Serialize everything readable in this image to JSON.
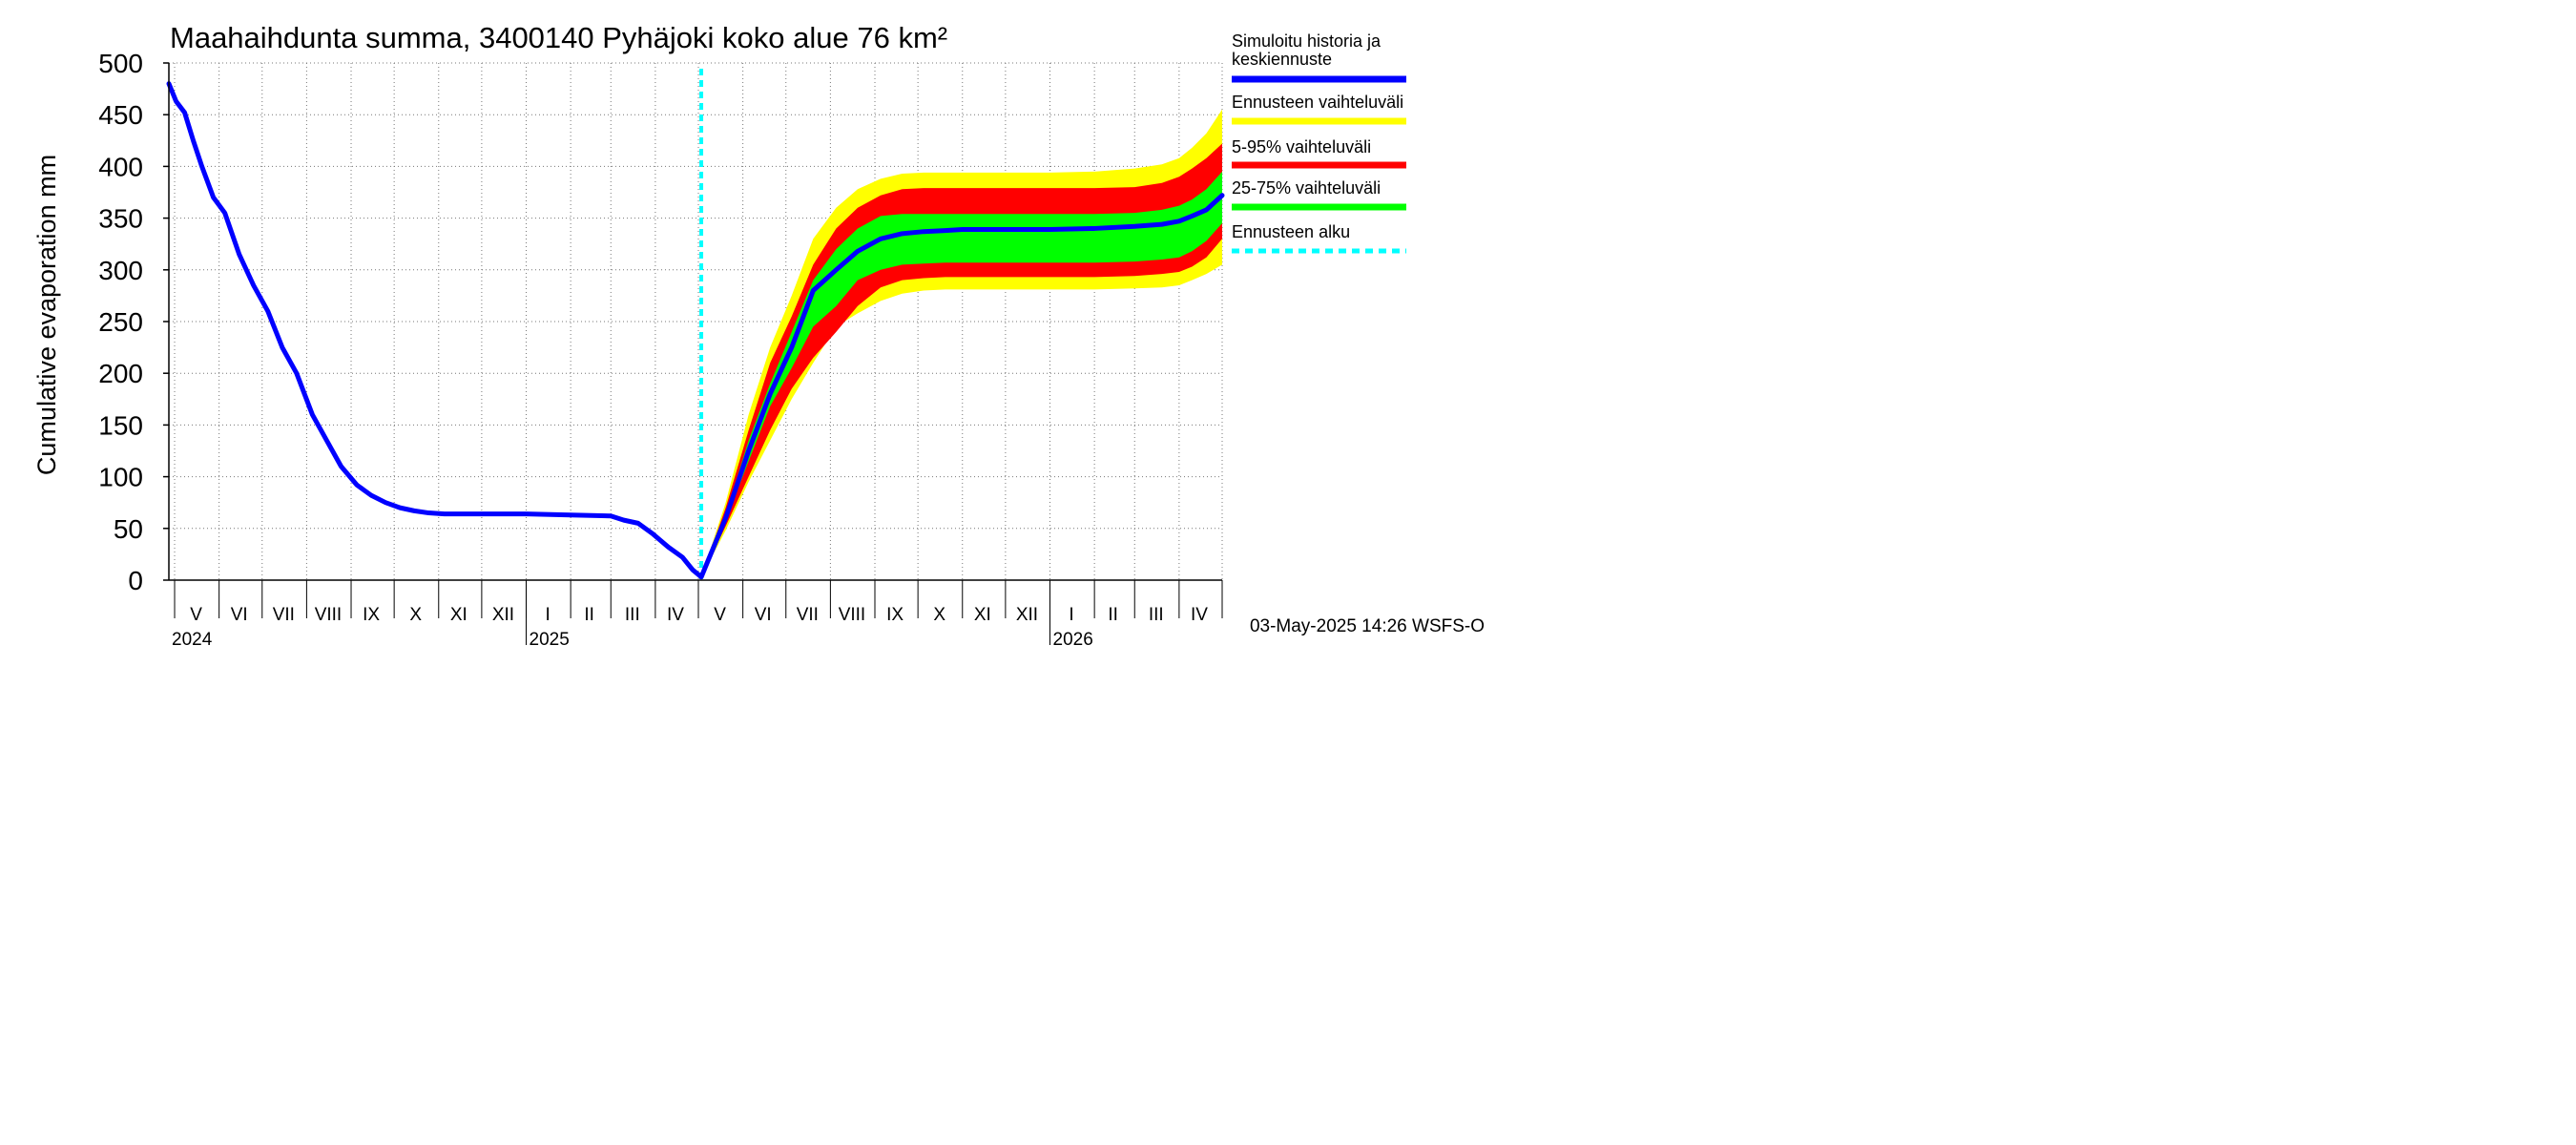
{
  "chart_data": {
    "type": "area",
    "title": "Maahaihdunta summa, 3400140 Pyhäjoki koko alue 76 km²",
    "ylabel": "Cumulative evaporation   mm",
    "ylim": [
      0,
      500
    ],
    "yticks": [
      0,
      50,
      100,
      150,
      200,
      250,
      300,
      350,
      400,
      450,
      500
    ],
    "x_range": [
      "2024-04-27",
      "2026-05-01"
    ],
    "month_labels": [
      {
        "label": "V",
        "date": "2024-05-16"
      },
      {
        "label": "VI",
        "date": "2024-06-15"
      },
      {
        "label": "VII",
        "date": "2024-07-16"
      },
      {
        "label": "VIII",
        "date": "2024-08-16"
      },
      {
        "label": "IX",
        "date": "2024-09-15"
      },
      {
        "label": "X",
        "date": "2024-10-16"
      },
      {
        "label": "XI",
        "date": "2024-11-15"
      },
      {
        "label": "XII",
        "date": "2024-12-16"
      },
      {
        "label": "I",
        "date": "2025-01-16"
      },
      {
        "label": "II",
        "date": "2025-02-14"
      },
      {
        "label": "III",
        "date": "2025-03-16"
      },
      {
        "label": "IV",
        "date": "2025-04-15"
      },
      {
        "label": "V",
        "date": "2025-05-16"
      },
      {
        "label": "VI",
        "date": "2025-06-15"
      },
      {
        "label": "VII",
        "date": "2025-07-16"
      },
      {
        "label": "VIII",
        "date": "2025-08-16"
      },
      {
        "label": "IX",
        "date": "2025-09-15"
      },
      {
        "label": "X",
        "date": "2025-10-16"
      },
      {
        "label": "XI",
        "date": "2025-11-15"
      },
      {
        "label": "XII",
        "date": "2025-12-16"
      },
      {
        "label": "I",
        "date": "2026-01-16"
      },
      {
        "label": "II",
        "date": "2026-02-14"
      },
      {
        "label": "III",
        "date": "2026-03-16"
      },
      {
        "label": "IV",
        "date": "2026-04-15"
      }
    ],
    "month_boundaries": [
      "2024-05-01",
      "2024-06-01",
      "2024-07-01",
      "2024-08-01",
      "2024-09-01",
      "2024-10-01",
      "2024-11-01",
      "2024-12-01",
      "2025-01-01",
      "2025-02-01",
      "2025-03-01",
      "2025-04-01",
      "2025-05-01",
      "2025-06-01",
      "2025-07-01",
      "2025-08-01",
      "2025-09-01",
      "2025-10-01",
      "2025-11-01",
      "2025-12-01",
      "2026-01-01",
      "2026-02-01",
      "2026-03-01",
      "2026-04-01",
      "2026-05-01"
    ],
    "year_boundaries": [
      "2025-01-01",
      "2026-01-01"
    ],
    "year_labels": [
      {
        "label": "2024",
        "date": "2024-04-27"
      },
      {
        "label": "2025",
        "date": "2025-01-01"
      },
      {
        "label": "2026",
        "date": "2026-01-01"
      }
    ],
    "forecast_start": "2025-05-03",
    "series": [
      {
        "name": "Simuloitu historia ja keskiennuste",
        "color": "#0000ff",
        "x": [
          "2024-04-27",
          "2024-05-02",
          "2024-05-08",
          "2024-05-14",
          "2024-05-20",
          "2024-05-28",
          "2024-06-05",
          "2024-06-15",
          "2024-06-25",
          "2024-07-05",
          "2024-07-15",
          "2024-07-25",
          "2024-08-05",
          "2024-08-15",
          "2024-08-25",
          "2024-09-05",
          "2024-09-15",
          "2024-09-25",
          "2024-10-05",
          "2024-10-15",
          "2024-10-25",
          "2024-11-05",
          "2024-11-20",
          "2024-12-10",
          "2025-01-01",
          "2025-02-01",
          "2025-03-01",
          "2025-03-10",
          "2025-03-20",
          "2025-03-30",
          "2025-04-10",
          "2025-04-20",
          "2025-04-27",
          "2025-05-03",
          "2025-05-20",
          "2025-06-05",
          "2025-06-20",
          "2025-07-05",
          "2025-07-20",
          "2025-08-05",
          "2025-08-20",
          "2025-09-05",
          "2025-09-20",
          "2025-10-05",
          "2025-10-20",
          "2025-11-01",
          "2025-12-01",
          "2026-01-01",
          "2026-02-01",
          "2026-03-01",
          "2026-03-20",
          "2026-04-01",
          "2026-04-10",
          "2026-04-20",
          "2026-05-01"
        ],
        "values": [
          480,
          463,
          452,
          425,
          400,
          370,
          355,
          315,
          285,
          260,
          225,
          200,
          160,
          135,
          110,
          92,
          82,
          75,
          70,
          67,
          65,
          64,
          64,
          64,
          64,
          63,
          62,
          58,
          55,
          45,
          32,
          22,
          10,
          3,
          60,
          125,
          180,
          225,
          280,
          300,
          318,
          330,
          335,
          337,
          338,
          339,
          339,
          339,
          340,
          342,
          344,
          347,
          352,
          358,
          372
        ]
      },
      {
        "name": "Ennusteen vaihteluväli",
        "color": "#ffff00",
        "x": [
          "2025-05-03",
          "2025-05-20",
          "2025-06-05",
          "2025-06-20",
          "2025-07-05",
          "2025-07-20",
          "2025-08-05",
          "2025-08-20",
          "2025-09-05",
          "2025-09-20",
          "2025-10-05",
          "2025-10-20",
          "2025-11-01",
          "2025-12-01",
          "2026-01-01",
          "2026-02-01",
          "2026-03-01",
          "2026-03-20",
          "2026-04-01",
          "2026-04-10",
          "2026-04-20",
          "2026-05-01"
        ],
        "low": [
          3,
          48,
          95,
          135,
          175,
          210,
          245,
          258,
          270,
          277,
          280,
          281,
          281,
          281,
          281,
          281,
          282,
          283,
          285,
          290,
          296,
          305
        ],
        "high": [
          3,
          75,
          160,
          225,
          275,
          330,
          360,
          378,
          388,
          393,
          394,
          394,
          394,
          394,
          394,
          395,
          398,
          402,
          408,
          418,
          432,
          455
        ]
      },
      {
        "name": "5-95% vaihteluväli",
        "color": "#ff0000",
        "x": [
          "2025-05-03",
          "2025-05-20",
          "2025-06-05",
          "2025-06-20",
          "2025-07-05",
          "2025-07-20",
          "2025-08-05",
          "2025-08-20",
          "2025-09-05",
          "2025-09-20",
          "2025-10-05",
          "2025-10-20",
          "2025-11-01",
          "2025-12-01",
          "2026-01-01",
          "2026-02-01",
          "2026-03-01",
          "2026-03-20",
          "2026-04-01",
          "2026-04-10",
          "2026-04-20",
          "2026-05-01"
        ],
        "low": [
          3,
          52,
          100,
          145,
          185,
          215,
          240,
          265,
          283,
          290,
          292,
          293,
          293,
          293,
          293,
          293,
          294,
          296,
          298,
          303,
          312,
          330
        ],
        "high": [
          3,
          70,
          145,
          210,
          255,
          305,
          340,
          360,
          372,
          378,
          379,
          379,
          379,
          379,
          379,
          379,
          380,
          384,
          390,
          398,
          408,
          422
        ]
      },
      {
        "name": "25-75% vaihteluväli",
        "color": "#00ff00",
        "x": [
          "2025-05-03",
          "2025-05-20",
          "2025-06-05",
          "2025-06-20",
          "2025-07-05",
          "2025-07-20",
          "2025-08-05",
          "2025-08-20",
          "2025-09-05",
          "2025-09-20",
          "2025-10-05",
          "2025-10-20",
          "2025-11-01",
          "2025-12-01",
          "2026-01-01",
          "2026-02-01",
          "2026-03-01",
          "2026-03-20",
          "2026-04-01",
          "2026-04-10",
          "2026-04-20",
          "2026-05-01"
        ],
        "low": [
          3,
          57,
          115,
          168,
          205,
          245,
          265,
          290,
          300,
          305,
          306,
          307,
          307,
          307,
          307,
          307,
          308,
          310,
          312,
          318,
          328,
          345
        ],
        "high": [
          3,
          64,
          135,
          190,
          240,
          290,
          320,
          340,
          352,
          354,
          354,
          354,
          354,
          354,
          354,
          354,
          355,
          358,
          362,
          368,
          378,
          395
        ]
      },
      {
        "name": "Ennusteen alku",
        "color": "#00ffff"
      }
    ],
    "legend": [
      {
        "label": "Simuloitu historia ja keskiennuste",
        "color": "#0000ff"
      },
      {
        "label": "Ennusteen vaihteluväli",
        "color": "#ffff00"
      },
      {
        "label": "5-95% vaihteluväli",
        "color": "#ff0000"
      },
      {
        "label": "25-75% vaihteluväli",
        "color": "#00ff00"
      },
      {
        "label": "Ennusteen alku",
        "color": "#00ffff"
      }
    ],
    "legend_position": "right",
    "grid": true,
    "footer": "03-May-2025 14:26 WSFS-O"
  }
}
